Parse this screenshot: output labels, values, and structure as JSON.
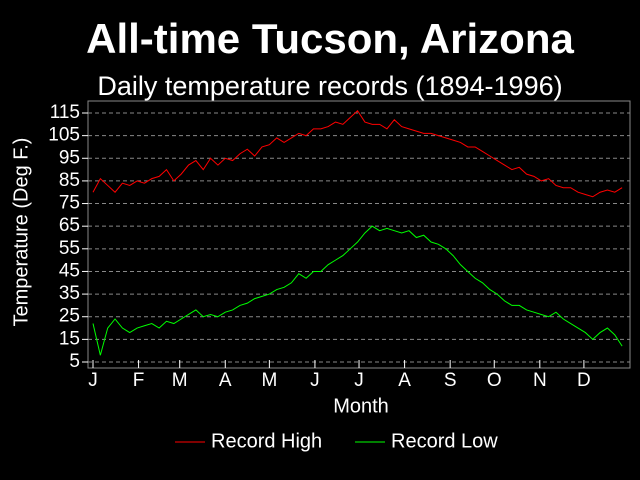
{
  "chart_data": {
    "type": "line",
    "title": "All-time Tucson, Arizona",
    "subtitle": "Daily temperature records (1894-1996)",
    "x_label": "Month",
    "y_label": "Temperature (Deg F.)",
    "x": [
      1,
      6,
      11,
      16,
      21,
      26,
      31,
      36,
      41,
      46,
      51,
      56,
      61,
      66,
      71,
      76,
      81,
      86,
      91,
      96,
      101,
      106,
      111,
      116,
      121,
      126,
      131,
      136,
      141,
      146,
      151,
      156,
      161,
      166,
      171,
      176,
      181,
      186,
      191,
      196,
      201,
      206,
      211,
      216,
      221,
      226,
      231,
      236,
      241,
      246,
      251,
      256,
      261,
      266,
      271,
      276,
      281,
      286,
      291,
      296,
      301,
      306,
      311,
      316,
      321,
      326,
      331,
      336,
      341,
      346,
      351,
      356,
      361
    ],
    "xlim": [
      1,
      365
    ],
    "xticks": [
      {
        "value": 1,
        "label": "J"
      },
      {
        "value": 32,
        "label": "F"
      },
      {
        "value": 60,
        "label": "M"
      },
      {
        "value": 91,
        "label": "A"
      },
      {
        "value": 121,
        "label": "M"
      },
      {
        "value": 152,
        "label": "J"
      },
      {
        "value": 182,
        "label": "J"
      },
      {
        "value": 213,
        "label": "A"
      },
      {
        "value": 244,
        "label": "S"
      },
      {
        "value": 274,
        "label": "O"
      },
      {
        "value": 305,
        "label": "N"
      },
      {
        "value": 335,
        "label": "D"
      }
    ],
    "ylim": [
      5,
      115
    ],
    "yticks": [
      5,
      15,
      25,
      35,
      45,
      55,
      65,
      75,
      85,
      95,
      105,
      115
    ],
    "grid": true,
    "legend": "bottom",
    "series": [
      {
        "name": "Record High",
        "color": "#ff0000",
        "values": [
          80,
          86,
          83,
          80,
          84,
          83,
          85,
          84,
          86,
          87,
          90,
          85,
          88,
          92,
          94,
          90,
          95,
          92,
          95,
          94,
          97,
          99,
          96,
          100,
          101,
          104,
          102,
          104,
          106,
          105,
          108,
          108,
          109,
          111,
          110,
          113,
          116,
          111,
          110,
          110,
          108,
          112,
          109,
          108,
          107,
          106,
          106,
          105,
          104,
          103,
          102,
          100,
          100,
          98,
          96,
          94,
          92,
          90,
          91,
          88,
          87,
          85,
          86,
          83,
          82,
          82,
          80,
          79,
          78,
          80,
          81,
          80,
          82
        ]
      },
      {
        "name": "Record Low",
        "color": "#00ff00",
        "values": [
          22,
          8,
          20,
          24,
          20,
          18,
          20,
          21,
          22,
          20,
          23,
          22,
          24,
          26,
          28,
          25,
          26,
          25,
          27,
          28,
          30,
          31,
          33,
          34,
          35,
          37,
          38,
          40,
          44,
          42,
          45,
          45,
          48,
          50,
          52,
          55,
          58,
          62,
          65,
          63,
          64,
          63,
          62,
          63,
          60,
          61,
          58,
          57,
          55,
          52,
          48,
          45,
          42,
          40,
          37,
          35,
          32,
          30,
          30,
          28,
          27,
          26,
          25,
          27,
          24,
          22,
          20,
          18,
          15,
          18,
          20,
          17,
          12
        ]
      }
    ]
  }
}
